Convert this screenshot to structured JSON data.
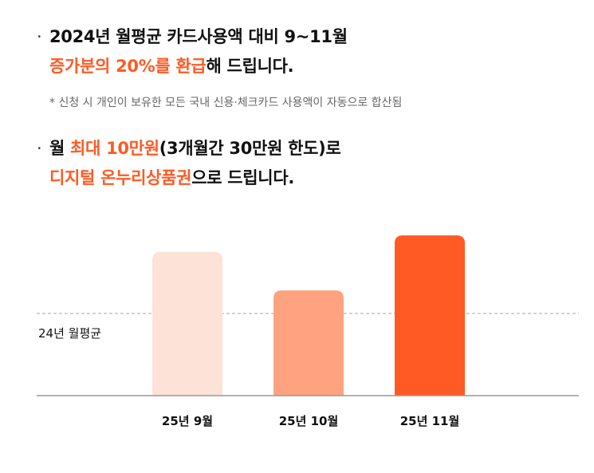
{
  "bullets": [
    {
      "dot": "·",
      "line1_text": "2024년 월평균 카드사용액 대비 9~11월",
      "line2_highlight": "증가분의 20%를 환급",
      "line2_rest": "해 드립니다."
    },
    {
      "dot": "·",
      "line1_pre": "월 ",
      "line1_highlight": "최대 10만원",
      "line1_rest": "(3개월간 30만원 한도)로",
      "line2_highlight": "디지털 온누리상품권",
      "line2_rest": "으로 드립니다."
    }
  ],
  "note": "* 신청 시 개인이 보유한 모든 국내 신용·체크카드 사용액이 자동으로 합산됨",
  "colors": {
    "highlight": "#ff5a24"
  },
  "chart_data": {
    "type": "bar",
    "categories": [
      "25년 9월",
      "25년 10월",
      "25년 11월"
    ],
    "values": [
      1.75,
      1.28,
      1.95
    ],
    "bar_colors": [
      "#fde2d8",
      "#ffa280",
      "#ff5a24"
    ],
    "reference_line": {
      "label": "24년 월평균",
      "value": 1.0
    },
    "ylim": [
      0,
      2.0
    ],
    "xlabel": "",
    "ylabel": "",
    "title": "",
    "grid": false
  }
}
